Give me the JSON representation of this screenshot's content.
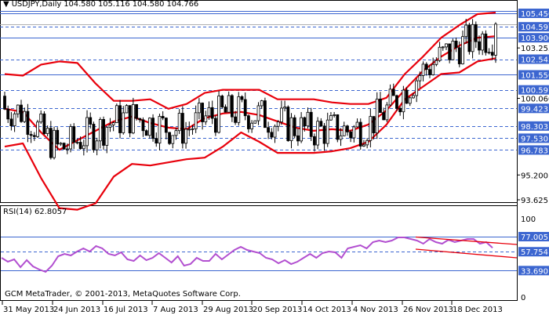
{
  "header": {
    "symbol": "USDJPY,Daily",
    "ohlc": "104.580 105.116 104.580 104.766",
    "title": "USDJPY,Daily  104.580 105.116 104.580 104.766"
  },
  "rsi_pane": {
    "title": "RSI(14) 62.8057"
  },
  "footer": {
    "copyright": "GCM MetaTrader, © 2001-2013, MetaQuotes Software Corp."
  },
  "colors": {
    "band": "#e8000b",
    "level_line": "#3c66d0",
    "label_bg": "#3c66d0",
    "rsi_line": "#b24fd0",
    "trendline": "#e8000b",
    "candle": "#000000"
  },
  "chart_data": [
    {
      "type": "candlestick",
      "title": "USDJPY,Daily",
      "subtitle": "O 104.580 H 105.116 L 104.580 C 104.766",
      "xlabel": "",
      "ylabel": "",
      "ylim": [
        93.0,
        106.2
      ],
      "grid": false,
      "x_tick_labels": [
        "31 May 2013",
        "24 Jun 2013",
        "16 Jul 2013",
        "7 Aug 2013",
        "29 Aug 2013",
        "20 Sep 2013",
        "14 Oct 2013",
        "4 Nov 2013",
        "26 Nov 2013",
        "18 Dec 2013"
      ],
      "y_axis_labels": [
        "105.450",
        "104.597",
        "103.900",
        "103.255",
        "102.543",
        "101.550",
        "100.597",
        "100.060",
        "99.423",
        "98.303",
        "97.530",
        "96.783",
        "95.200",
        "93.625"
      ],
      "highlighted_levels": [
        {
          "value": 105.45,
          "style": "solid"
        },
        {
          "value": 104.597,
          "style": "dashed"
        },
        {
          "value": 103.9,
          "style": "solid"
        },
        {
          "value": 102.543,
          "style": "dashed"
        },
        {
          "value": 101.55,
          "style": "solid"
        },
        {
          "value": 100.597,
          "style": "dashed"
        },
        {
          "value": 99.423,
          "style": "dashed"
        },
        {
          "value": 98.303,
          "style": "dashed"
        },
        {
          "value": 97.53,
          "style": "dashed"
        },
        {
          "value": 96.783,
          "style": "dashed"
        }
      ],
      "plain_labels": [
        103.255,
        100.06,
        95.2,
        93.625
      ],
      "current_price": 104.766,
      "series": [
        {
          "name": "Bollinger Upper",
          "values": [
            101.6,
            101.5,
            102.2,
            102.4,
            102.3,
            101.0,
            99.9,
            99.9,
            100.0,
            99.4,
            99.7,
            100.4,
            100.6,
            100.6,
            100.6,
            100.0,
            100.0,
            100.0,
            99.8,
            99.7,
            99.7,
            100.1,
            101.6,
            102.7,
            103.9,
            104.7,
            105.4,
            105.5
          ]
        },
        {
          "name": "Bollinger Middle",
          "values": [
            99.4,
            99.2,
            97.9,
            96.8,
            97.4,
            98.0,
            98.6,
            98.9,
            98.5,
            98.2,
            98.1,
            98.8,
            99.1,
            99.2,
            99.0,
            98.6,
            98.2,
            98.0,
            98.1,
            98.0,
            98.4,
            99.3,
            100.6,
            101.8,
            102.7,
            103.4,
            103.9,
            104.0
          ]
        },
        {
          "name": "Bollinger Lower",
          "values": [
            97.0,
            97.2,
            95.0,
            93.1,
            93.0,
            93.4,
            95.1,
            95.9,
            95.8,
            96.0,
            96.2,
            96.3,
            97.0,
            97.9,
            97.3,
            96.6,
            96.6,
            96.6,
            96.7,
            96.9,
            97.3,
            98.4,
            100.0,
            100.8,
            101.6,
            101.7,
            102.4,
            102.6
          ]
        }
      ]
    },
    {
      "type": "line",
      "title": "RSI(14) 62.8057",
      "ylim": [
        0,
        100
      ],
      "y_axis_labels": [
        "100",
        "77.005",
        "57.754",
        "33.690",
        "0"
      ],
      "levels": [
        {
          "value": 77.005,
          "style": "solid"
        },
        {
          "value": 57.754,
          "style": "dashed"
        },
        {
          "value": 33.69,
          "style": "solid"
        }
      ],
      "series": [
        {
          "name": "RSI(14)",
          "values": [
            50,
            45,
            48,
            38,
            47,
            39,
            35,
            32,
            40,
            52,
            55,
            53,
            58,
            62,
            58,
            65,
            62,
            55,
            53,
            57,
            48,
            46,
            53,
            47,
            50,
            56,
            50,
            44,
            52,
            40,
            42,
            50,
            46,
            46,
            55,
            48,
            54,
            60,
            64,
            60,
            58,
            56,
            50,
            48,
            43,
            47,
            42,
            45,
            50,
            55,
            50,
            56,
            58,
            57,
            50,
            62,
            64,
            66,
            62,
            70,
            72,
            70,
            72,
            76,
            76,
            74,
            72,
            68,
            74,
            70,
            68,
            73,
            70,
            72,
            74,
            74,
            68,
            70,
            62.8
          ]
        },
        {
          "name": "Upper trendline",
          "values": [
            76.5,
            67.0
          ]
        },
        {
          "name": "Lower trendline",
          "values": [
            61.0,
            50.0
          ]
        }
      ],
      "current_value": 62.8057
    }
  ]
}
